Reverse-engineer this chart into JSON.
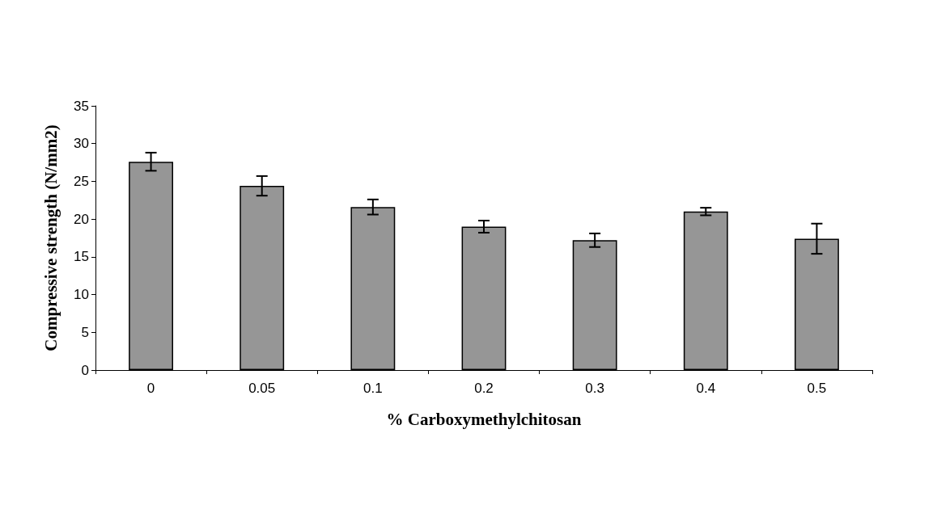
{
  "chart_data": {
    "type": "bar",
    "xlabel": "% Carboxymethylchitosan",
    "ylabel": "Compressive strength (N/mm2)",
    "categories": [
      "0",
      "0.05",
      "0.1",
      "0.2",
      "0.3",
      "0.4",
      "0.5"
    ],
    "values": [
      27.6,
      24.4,
      21.6,
      19.0,
      17.2,
      21.0,
      17.4
    ],
    "errors": [
      1.2,
      1.3,
      1.0,
      0.8,
      0.9,
      0.5,
      2.0
    ],
    "color": "#969696",
    "ylim": [
      0,
      35
    ],
    "yticks": [
      0,
      5,
      10,
      15,
      20,
      25,
      30,
      35
    ],
    "grid": false
  }
}
